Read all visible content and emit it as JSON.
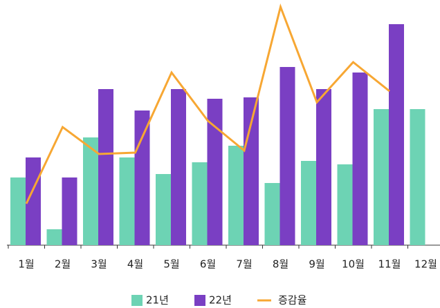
{
  "chart_data": {
    "type": "bar",
    "categories": [
      "1월",
      "2월",
      "3월",
      "4월",
      "5월",
      "6월",
      "7월",
      "8월",
      "9월",
      "10월",
      "11월",
      "12월"
    ],
    "series": [
      {
        "name": "21년",
        "type": "bar",
        "color": "#6dd3b4",
        "values": [
          98,
          23,
          156,
          127,
          103,
          120,
          144,
          90,
          122,
          117,
          197,
          197
        ]
      },
      {
        "name": "22년",
        "type": "bar",
        "color": "#7a3fc3",
        "values": [
          127,
          98,
          226,
          195,
          226,
          212,
          214,
          258,
          226,
          250,
          320,
          null
        ]
      },
      {
        "name": "증감율",
        "type": "line",
        "color": "#f7a733",
        "values": [
          60,
          171,
          132,
          134,
          250,
          180,
          137,
          345,
          207,
          265,
          223,
          null
        ]
      }
    ],
    "ylim": [
      0,
      345
    ]
  }
}
